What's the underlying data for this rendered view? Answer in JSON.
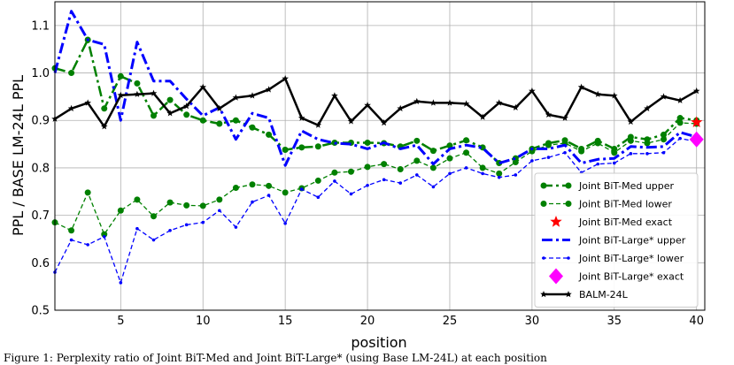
{
  "caption": "Figure 1: Perplexity ratio of Joint BiT-Med and Joint BiT-Large* (using Base LM-24L) at each position",
  "chart_data": {
    "type": "line",
    "xlabel": "position",
    "ylabel": "PPL / BASE LM-24L PPL",
    "xlim": [
      1,
      40.5
    ],
    "ylim": [
      0.5,
      1.15
    ],
    "xticks": [
      5,
      10,
      15,
      20,
      25,
      30,
      35,
      40
    ],
    "yticks": [
      0.5,
      0.6,
      0.7,
      0.8,
      0.9,
      1.0,
      1.1
    ],
    "ytick_labels": [
      "0.5",
      "0.6",
      "0.7",
      "0.8",
      "0.9",
      "1.0",
      "1.1"
    ],
    "grid": true,
    "legend_position": "lower-right",
    "series": [
      {
        "name": "Joint BiT-Med upper",
        "color": "#008000",
        "style": "dashdot",
        "marker": "circle",
        "width": 2.5,
        "x": [
          1,
          2,
          3,
          4,
          5,
          6,
          7,
          8,
          9,
          10,
          11,
          12,
          13,
          14,
          15,
          16,
          17,
          18,
          19,
          20,
          21,
          22,
          23,
          24,
          25,
          26,
          27,
          28,
          29,
          30,
          31,
          32,
          33,
          34,
          35,
          36,
          37,
          38,
          39,
          40
        ],
        "y": [
          1.01,
          1.0,
          1.07,
          0.925,
          0.993,
          0.978,
          0.91,
          0.943,
          0.912,
          0.9,
          0.893,
          0.9,
          0.885,
          0.87,
          0.838,
          0.843,
          0.845,
          0.853,
          0.853,
          0.853,
          0.852,
          0.845,
          0.857,
          0.836,
          0.847,
          0.858,
          0.843,
          0.81,
          0.82,
          0.84,
          0.852,
          0.858,
          0.84,
          0.857,
          0.84,
          0.865,
          0.86,
          0.87,
          0.905,
          0.9
        ]
      },
      {
        "name": "Joint BiT-Med lower",
        "color": "#008000",
        "style": "dashed",
        "marker": "circle",
        "width": 1.3,
        "x": [
          1,
          2,
          3,
          4,
          5,
          6,
          7,
          8,
          9,
          10,
          11,
          12,
          13,
          14,
          15,
          16,
          17,
          18,
          19,
          20,
          21,
          22,
          23,
          24,
          25,
          26,
          27,
          28,
          29,
          30,
          31,
          32,
          33,
          34,
          35,
          36,
          37,
          38,
          39,
          40
        ],
        "y": [
          0.685,
          0.668,
          0.748,
          0.66,
          0.71,
          0.733,
          0.698,
          0.727,
          0.721,
          0.72,
          0.733,
          0.758,
          0.765,
          0.762,
          0.748,
          0.757,
          0.773,
          0.79,
          0.792,
          0.802,
          0.808,
          0.797,
          0.815,
          0.8,
          0.82,
          0.832,
          0.8,
          0.788,
          0.812,
          0.835,
          0.848,
          0.852,
          0.835,
          0.852,
          0.832,
          0.857,
          0.852,
          0.86,
          0.895,
          0.893
        ]
      },
      {
        "name": "Joint BiT-Med exact",
        "color": "#ff0000",
        "style": "none",
        "marker": "star",
        "width": 0,
        "x": [
          40
        ],
        "y": [
          0.896
        ]
      },
      {
        "name": "Joint BiT-Large* upper",
        "color": "#0000ff",
        "style": "dashdot",
        "marker": "none",
        "width": 3,
        "x": [
          1,
          2,
          3,
          4,
          5,
          6,
          7,
          8,
          9,
          10,
          11,
          12,
          13,
          14,
          15,
          16,
          17,
          18,
          19,
          20,
          21,
          22,
          23,
          24,
          25,
          26,
          27,
          28,
          29,
          30,
          31,
          32,
          33,
          34,
          35,
          36,
          37,
          38,
          39,
          40
        ],
        "y": [
          1.0,
          1.13,
          1.07,
          1.06,
          0.9,
          1.065,
          0.983,
          0.983,
          0.945,
          0.91,
          0.927,
          0.86,
          0.915,
          0.905,
          0.805,
          0.878,
          0.86,
          0.852,
          0.85,
          0.84,
          0.853,
          0.84,
          0.848,
          0.808,
          0.84,
          0.848,
          0.842,
          0.81,
          0.82,
          0.84,
          0.84,
          0.848,
          0.81,
          0.818,
          0.82,
          0.845,
          0.843,
          0.845,
          0.875,
          0.865
        ]
      },
      {
        "name": "Joint BiT-Large* lower",
        "color": "#0000ff",
        "style": "dashed",
        "marker": "dot",
        "width": 1.3,
        "x": [
          1,
          2,
          3,
          4,
          5,
          6,
          7,
          8,
          9,
          10,
          11,
          12,
          13,
          14,
          15,
          16,
          17,
          18,
          19,
          20,
          21,
          22,
          23,
          24,
          25,
          26,
          27,
          28,
          29,
          30,
          31,
          32,
          33,
          34,
          35,
          36,
          37,
          38,
          39,
          40
        ],
        "y": [
          0.58,
          0.648,
          0.638,
          0.655,
          0.558,
          0.672,
          0.648,
          0.668,
          0.68,
          0.685,
          0.71,
          0.675,
          0.728,
          0.742,
          0.683,
          0.755,
          0.738,
          0.772,
          0.745,
          0.763,
          0.775,
          0.768,
          0.785,
          0.76,
          0.788,
          0.8,
          0.788,
          0.78,
          0.785,
          0.815,
          0.822,
          0.832,
          0.79,
          0.808,
          0.81,
          0.83,
          0.83,
          0.832,
          0.862,
          0.855
        ]
      },
      {
        "name": "Joint BiT-Large* exact",
        "color": "#ff00ff",
        "style": "none",
        "marker": "diamond",
        "width": 0,
        "x": [
          40
        ],
        "y": [
          0.86
        ]
      },
      {
        "name": "BALM-24L",
        "color": "#000000",
        "style": "solid",
        "marker": "star-small",
        "width": 2.5,
        "x": [
          1,
          2,
          3,
          4,
          5,
          6,
          7,
          8,
          9,
          10,
          11,
          12,
          13,
          14,
          15,
          16,
          17,
          18,
          19,
          20,
          21,
          22,
          23,
          24,
          25,
          26,
          27,
          28,
          29,
          30,
          31,
          32,
          33,
          34,
          35,
          36,
          37,
          38,
          39,
          40
        ],
        "y": [
          0.903,
          0.925,
          0.937,
          0.887,
          0.953,
          0.955,
          0.957,
          0.915,
          0.93,
          0.97,
          0.925,
          0.948,
          0.952,
          0.965,
          0.988,
          0.905,
          0.89,
          0.952,
          0.898,
          0.932,
          0.895,
          0.925,
          0.94,
          0.937,
          0.937,
          0.935,
          0.907,
          0.937,
          0.927,
          0.962,
          0.912,
          0.905,
          0.97,
          0.955,
          0.952,
          0.897,
          0.925,
          0.95,
          0.942,
          0.962
        ]
      }
    ]
  }
}
